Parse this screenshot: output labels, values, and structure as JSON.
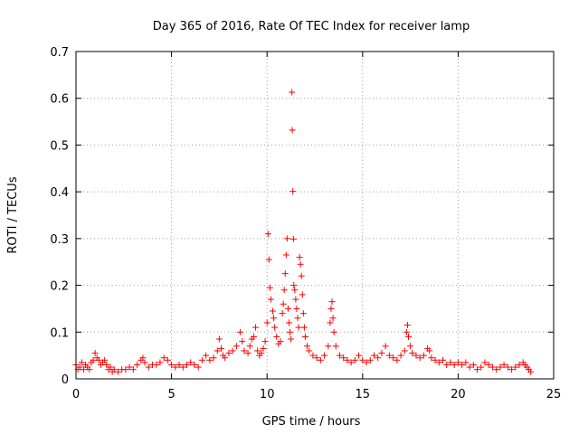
{
  "chart_data": {
    "type": "scatter",
    "title": "Day 365 of 2016, Rate Of TEC Index for receiver lamp",
    "xlabel": "GPS time / hours",
    "ylabel": "ROTI / TECUs",
    "xlim": [
      0,
      25
    ],
    "ylim": [
      0,
      0.7
    ],
    "xticks": [
      0,
      5,
      10,
      15,
      20,
      25
    ],
    "xtick_labels": [
      "0",
      "5",
      "10",
      "15",
      "20",
      "25"
    ],
    "yticks": [
      0,
      0.1,
      0.2,
      0.3,
      0.4,
      0.5,
      0.6,
      0.7
    ],
    "ytick_labels": [
      "0",
      "0.1",
      "0.2",
      "0.3",
      "0.4",
      "0.5",
      "0.6",
      "0.7"
    ],
    "grid": true,
    "marker": "+",
    "color": "#ff0000",
    "series": [
      {
        "points": [
          [
            0.0,
            0.03
          ],
          [
            0.1,
            0.02
          ],
          [
            0.2,
            0.025
          ],
          [
            0.3,
            0.035
          ],
          [
            0.4,
            0.02
          ],
          [
            0.5,
            0.03
          ],
          [
            0.6,
            0.025
          ],
          [
            0.7,
            0.02
          ],
          [
            0.8,
            0.035
          ],
          [
            0.9,
            0.04
          ],
          [
            1.0,
            0.055
          ],
          [
            1.1,
            0.045
          ],
          [
            1.2,
            0.04
          ],
          [
            1.3,
            0.03
          ],
          [
            1.4,
            0.035
          ],
          [
            1.5,
            0.04
          ],
          [
            1.6,
            0.03
          ],
          [
            1.7,
            0.02
          ],
          [
            1.8,
            0.025
          ],
          [
            1.9,
            0.015
          ],
          [
            2.0,
            0.02
          ],
          [
            2.2,
            0.015
          ],
          [
            2.4,
            0.02
          ],
          [
            2.6,
            0.02
          ],
          [
            2.8,
            0.025
          ],
          [
            3.0,
            0.02
          ],
          [
            3.2,
            0.03
          ],
          [
            3.4,
            0.04
          ],
          [
            3.5,
            0.045
          ],
          [
            3.6,
            0.035
          ],
          [
            3.8,
            0.025
          ],
          [
            4.0,
            0.03
          ],
          [
            4.2,
            0.03
          ],
          [
            4.4,
            0.035
          ],
          [
            4.6,
            0.045
          ],
          [
            4.8,
            0.04
          ],
          [
            5.0,
            0.03
          ],
          [
            5.2,
            0.025
          ],
          [
            5.4,
            0.03
          ],
          [
            5.6,
            0.025
          ],
          [
            5.8,
            0.03
          ],
          [
            6.0,
            0.035
          ],
          [
            6.2,
            0.03
          ],
          [
            6.4,
            0.025
          ],
          [
            6.6,
            0.04
          ],
          [
            6.8,
            0.05
          ],
          [
            7.0,
            0.04
          ],
          [
            7.2,
            0.045
          ],
          [
            7.4,
            0.06
          ],
          [
            7.5,
            0.085
          ],
          [
            7.6,
            0.065
          ],
          [
            7.7,
            0.05
          ],
          [
            7.8,
            0.045
          ],
          [
            8.0,
            0.055
          ],
          [
            8.2,
            0.06
          ],
          [
            8.4,
            0.07
          ],
          [
            8.6,
            0.1
          ],
          [
            8.7,
            0.08
          ],
          [
            8.8,
            0.06
          ],
          [
            9.0,
            0.055
          ],
          [
            9.1,
            0.07
          ],
          [
            9.2,
            0.085
          ],
          [
            9.3,
            0.09
          ],
          [
            9.4,
            0.11
          ],
          [
            9.5,
            0.06
          ],
          [
            9.6,
            0.05
          ],
          [
            9.7,
            0.055
          ],
          [
            9.8,
            0.065
          ],
          [
            9.9,
            0.08
          ],
          [
            10.0,
            0.12
          ],
          [
            10.05,
            0.31
          ],
          [
            10.1,
            0.255
          ],
          [
            10.15,
            0.195
          ],
          [
            10.2,
            0.17
          ],
          [
            10.3,
            0.145
          ],
          [
            10.35,
            0.13
          ],
          [
            10.4,
            0.11
          ],
          [
            10.5,
            0.09
          ],
          [
            10.6,
            0.075
          ],
          [
            10.7,
            0.08
          ],
          [
            10.8,
            0.14
          ],
          [
            10.85,
            0.16
          ],
          [
            10.9,
            0.19
          ],
          [
            10.95,
            0.225
          ],
          [
            11.0,
            0.265
          ],
          [
            11.05,
            0.3
          ],
          [
            11.1,
            0.15
          ],
          [
            11.15,
            0.12
          ],
          [
            11.2,
            0.1
          ],
          [
            11.25,
            0.085
          ],
          [
            11.3,
            0.613
          ],
          [
            11.32,
            0.532
          ],
          [
            11.35,
            0.401
          ],
          [
            11.38,
            0.299
          ],
          [
            11.4,
            0.2
          ],
          [
            11.45,
            0.19
          ],
          [
            11.5,
            0.17
          ],
          [
            11.55,
            0.15
          ],
          [
            11.6,
            0.13
          ],
          [
            11.65,
            0.11
          ],
          [
            11.7,
            0.26
          ],
          [
            11.75,
            0.245
          ],
          [
            11.8,
            0.22
          ],
          [
            11.85,
            0.18
          ],
          [
            11.9,
            0.14
          ],
          [
            11.95,
            0.11
          ],
          [
            12.0,
            0.09
          ],
          [
            12.1,
            0.07
          ],
          [
            12.2,
            0.06
          ],
          [
            12.4,
            0.05
          ],
          [
            12.6,
            0.045
          ],
          [
            12.8,
            0.04
          ],
          [
            13.0,
            0.05
          ],
          [
            13.2,
            0.07
          ],
          [
            13.3,
            0.12
          ],
          [
            13.35,
            0.15
          ],
          [
            13.4,
            0.165
          ],
          [
            13.45,
            0.13
          ],
          [
            13.5,
            0.1
          ],
          [
            13.6,
            0.07
          ],
          [
            13.8,
            0.05
          ],
          [
            14.0,
            0.045
          ],
          [
            14.2,
            0.04
          ],
          [
            14.4,
            0.035
          ],
          [
            14.6,
            0.04
          ],
          [
            14.8,
            0.05
          ],
          [
            15.0,
            0.04
          ],
          [
            15.2,
            0.035
          ],
          [
            15.4,
            0.04
          ],
          [
            15.6,
            0.05
          ],
          [
            15.8,
            0.045
          ],
          [
            16.0,
            0.055
          ],
          [
            16.2,
            0.07
          ],
          [
            16.4,
            0.05
          ],
          [
            16.6,
            0.045
          ],
          [
            16.8,
            0.04
          ],
          [
            17.0,
            0.05
          ],
          [
            17.2,
            0.06
          ],
          [
            17.3,
            0.1
          ],
          [
            17.35,
            0.115
          ],
          [
            17.4,
            0.09
          ],
          [
            17.5,
            0.07
          ],
          [
            17.6,
            0.055
          ],
          [
            17.8,
            0.05
          ],
          [
            18.0,
            0.045
          ],
          [
            18.2,
            0.05
          ],
          [
            18.4,
            0.065
          ],
          [
            18.5,
            0.06
          ],
          [
            18.6,
            0.045
          ],
          [
            18.8,
            0.04
          ],
          [
            19.0,
            0.035
          ],
          [
            19.2,
            0.04
          ],
          [
            19.4,
            0.03
          ],
          [
            19.6,
            0.035
          ],
          [
            19.8,
            0.03
          ],
          [
            20.0,
            0.035
          ],
          [
            20.2,
            0.03
          ],
          [
            20.4,
            0.035
          ],
          [
            20.6,
            0.025
          ],
          [
            20.8,
            0.03
          ],
          [
            21.0,
            0.02
          ],
          [
            21.2,
            0.025
          ],
          [
            21.4,
            0.035
          ],
          [
            21.6,
            0.03
          ],
          [
            21.8,
            0.025
          ],
          [
            22.0,
            0.02
          ],
          [
            22.2,
            0.025
          ],
          [
            22.4,
            0.03
          ],
          [
            22.6,
            0.025
          ],
          [
            22.8,
            0.02
          ],
          [
            23.0,
            0.025
          ],
          [
            23.2,
            0.03
          ],
          [
            23.4,
            0.035
          ],
          [
            23.5,
            0.03
          ],
          [
            23.6,
            0.025
          ],
          [
            23.7,
            0.02
          ],
          [
            23.8,
            0.015
          ]
        ]
      }
    ]
  }
}
